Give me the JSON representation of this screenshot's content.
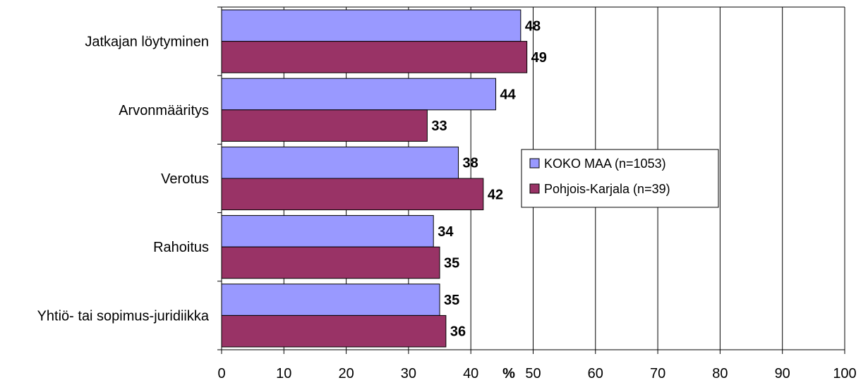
{
  "chart_data": {
    "type": "bar",
    "orientation": "horizontal",
    "categories": [
      "Jatkajan löytyminen",
      "Arvonmääritys",
      "Verotus",
      "Rahoitus",
      "Yhtiö- tai sopimus-juridiikka"
    ],
    "series": [
      {
        "name": "KOKO MAA (n=1053)",
        "values": [
          48,
          44,
          38,
          34,
          35
        ],
        "color": "#9999ff"
      },
      {
        "name": "Pohjois-Karjala (n=39)",
        "values": [
          49,
          33,
          42,
          35,
          36
        ],
        "color": "#993366"
      }
    ],
    "xlabel": "%",
    "xlim": [
      0,
      100
    ],
    "xticks": [
      0,
      10,
      20,
      30,
      40,
      50,
      60,
      70,
      80,
      90,
      100
    ],
    "grid": "vertical",
    "legend": "center-right",
    "data_labels": true
  }
}
